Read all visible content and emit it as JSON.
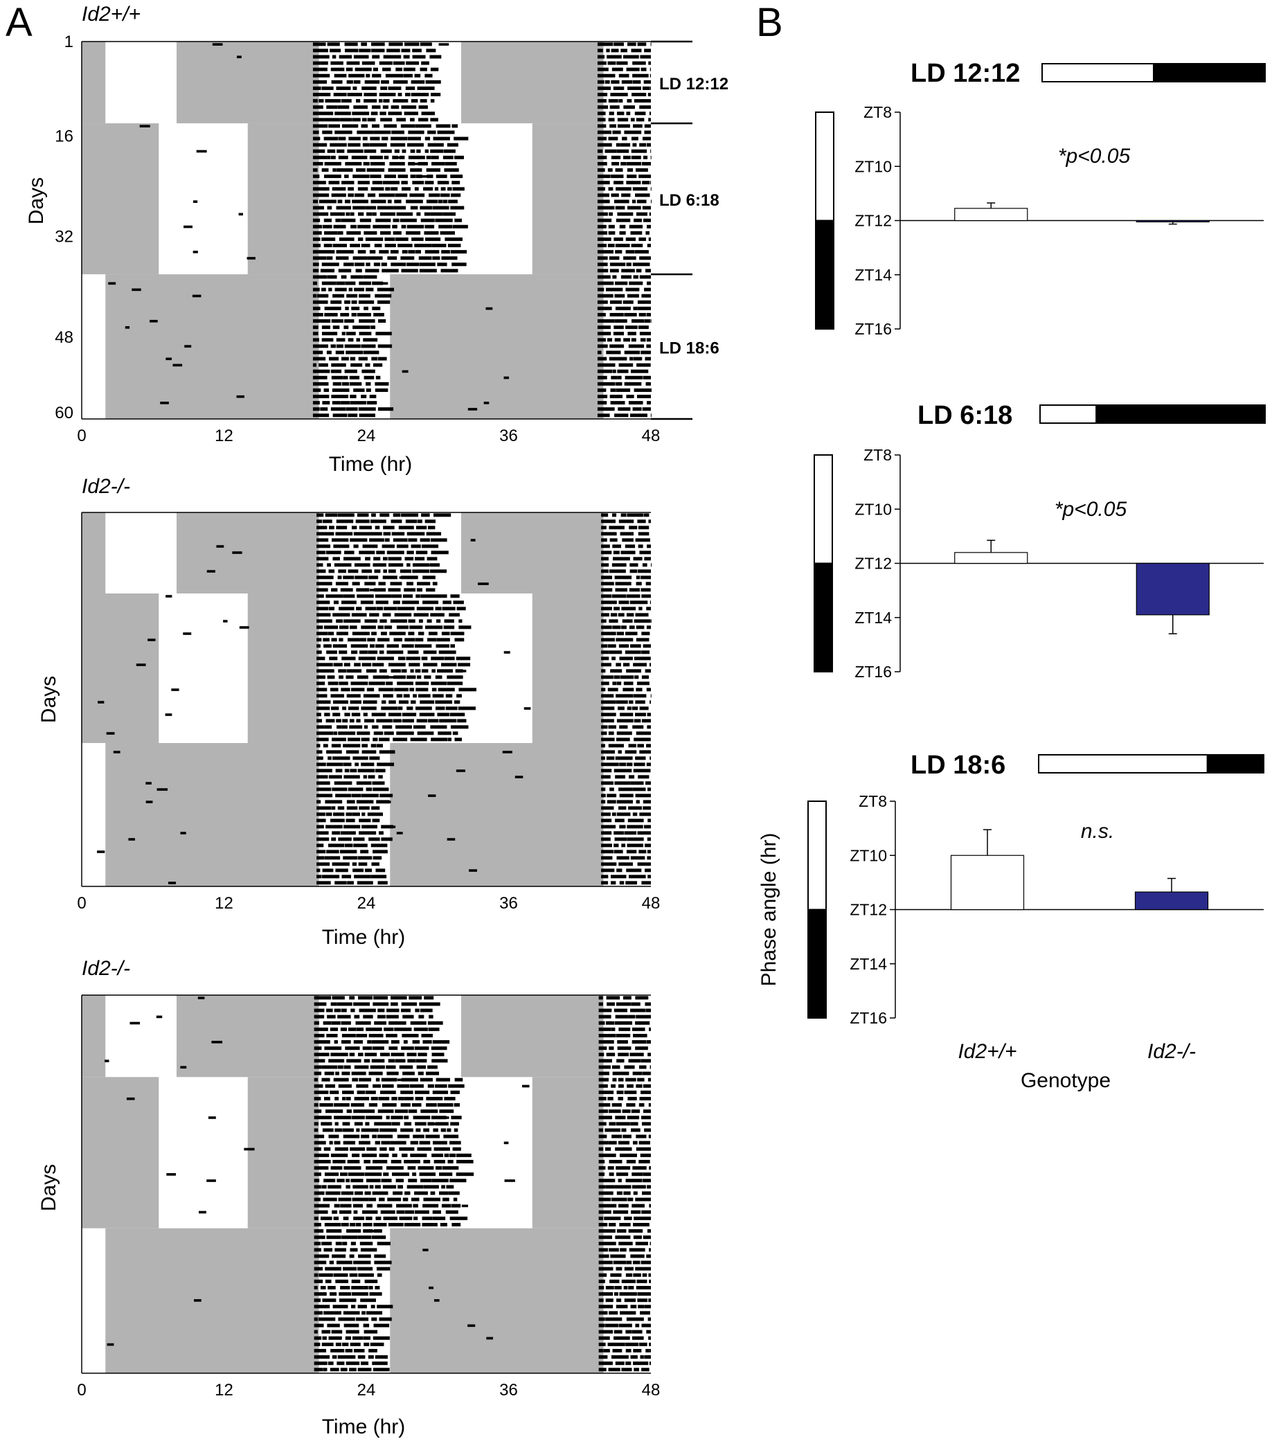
{
  "panel_labels": {
    "a": "A",
    "b": "B"
  },
  "colors": {
    "light_shade": "#b3b3b3",
    "activity": "#000000",
    "wt_bar": "#ffffff",
    "ko_bar": "#2b2b8c"
  },
  "chart_data": [
    {
      "type": "actogram",
      "genotype": "Id2+/+",
      "xlabel": "Time (hr)",
      "ylabel": "Days",
      "x_ticks": [
        "0",
        "12",
        "24",
        "36",
        "48"
      ],
      "y_ticks": [
        "1",
        "16",
        "32",
        "48",
        "60"
      ],
      "days": 60,
      "double_plotted_hours": 48,
      "phases": [
        {
          "label": "LD 12:12",
          "start_day": 1,
          "end_day": 13,
          "light_on": 8,
          "light_off": 20
        },
        {
          "label": "LD 6:18",
          "start_day": 14,
          "end_day": 37,
          "light_on": 14,
          "light_off": 20
        },
        {
          "label": "LD 18:6",
          "start_day": 38,
          "end_day": 60,
          "light_on": 2,
          "light_off": 20
        }
      ]
    },
    {
      "type": "actogram",
      "genotype": "Id2-/-",
      "xlabel": "Time (hr)",
      "ylabel": "Days",
      "x_ticks": [
        "0",
        "12",
        "24",
        "36",
        "48"
      ],
      "days": 60,
      "double_plotted_hours": 48
    },
    {
      "type": "actogram",
      "genotype": "Id2-/-",
      "xlabel": "Time (hr)",
      "ylabel": "Days",
      "x_ticks": [
        "0",
        "12",
        "24",
        "36",
        "48"
      ],
      "days": 60,
      "double_plotted_hours": 48
    },
    {
      "type": "bar",
      "title": "LD 12:12",
      "photoperiod": {
        "light_hours": 12,
        "dark_hours": 12
      },
      "y_ticks": [
        "ZT8",
        "ZT10",
        "ZT12",
        "ZT14",
        "ZT16"
      ],
      "ylim": [
        8,
        16
      ],
      "baseline": 12,
      "categories": [
        "Id2+/+",
        "Id2-/-"
      ],
      "values": [
        11.55,
        12.05
      ],
      "errors": [
        0.2,
        0.08
      ],
      "annotation": "*p<0.05"
    },
    {
      "type": "bar",
      "title": "LD 6:18",
      "photoperiod": {
        "light_hours": 6,
        "dark_hours": 18
      },
      "y_ticks": [
        "ZT8",
        "ZT10",
        "ZT12",
        "ZT14",
        "ZT16"
      ],
      "ylim": [
        8,
        16
      ],
      "baseline": 12,
      "categories": [
        "Id2+/+",
        "Id2-/-"
      ],
      "values": [
        11.6,
        13.9
      ],
      "errors": [
        0.45,
        0.7
      ],
      "annotation": "*p<0.05"
    },
    {
      "type": "bar",
      "title": "LD 18:6",
      "photoperiod": {
        "light_hours": 18,
        "dark_hours": 6
      },
      "y_ticks": [
        "ZT8",
        "ZT10",
        "ZT12",
        "ZT14",
        "ZT16"
      ],
      "ylim": [
        8,
        16
      ],
      "baseline": 12,
      "categories": [
        "Id2+/+",
        "Id2-/-"
      ],
      "values": [
        10.0,
        11.35
      ],
      "errors": [
        0.95,
        0.5
      ],
      "annotation": "n.s.",
      "ylabel": "Phase angle (hr)",
      "xlabel": "Genotype"
    }
  ]
}
